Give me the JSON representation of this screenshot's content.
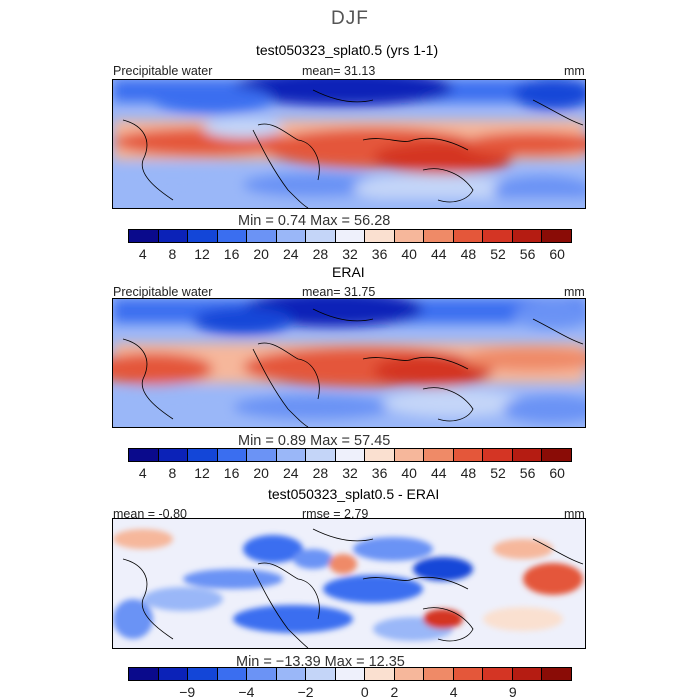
{
  "figure": {
    "suptitle": "DJF",
    "colors": {
      "warm_sequence": [
        "#0a0a8c",
        "#0b22b8",
        "#1346d8",
        "#3a6ef0",
        "#6b93f5",
        "#9ab7f8",
        "#c4d5f8",
        "#eef0fb",
        "#fae0d0",
        "#f6b79b",
        "#ef8a67",
        "#e4573a",
        "#d43524",
        "#b51c12",
        "#8a0c06"
      ]
    },
    "panels": [
      {
        "id": "model",
        "title": "test050323_splat0.5 (yrs 1-1)",
        "left_label": "Precipitable water",
        "center_label": "mean=  31.13",
        "right_label": "mm",
        "minmax": "Min =    0.74  Max =   56.28",
        "colorbar": {
          "colors": [
            "#0a0a8c",
            "#0b22b8",
            "#1346d8",
            "#3a6ef0",
            "#6b93f5",
            "#9ab7f8",
            "#c4d5f8",
            "#eef0fb",
            "#fae0d0",
            "#f6b79b",
            "#ef8a67",
            "#e4573a",
            "#d43524",
            "#b51c12",
            "#8a0c06"
          ],
          "ticks": [
            "4",
            "8",
            "12",
            "16",
            "20",
            "24",
            "28",
            "32",
            "36",
            "40",
            "44",
            "48",
            "52",
            "56",
            "60"
          ]
        }
      },
      {
        "id": "obs",
        "title": "ERAI",
        "left_label": "Precipitable water",
        "center_label": "mean=  31.75",
        "right_label": "mm",
        "minmax": "Min =    0.89  Max =   57.45",
        "colorbar": {
          "colors": [
            "#0a0a8c",
            "#0b22b8",
            "#1346d8",
            "#3a6ef0",
            "#6b93f5",
            "#9ab7f8",
            "#c4d5f8",
            "#eef0fb",
            "#fae0d0",
            "#f6b79b",
            "#ef8a67",
            "#e4573a",
            "#d43524",
            "#b51c12",
            "#8a0c06"
          ],
          "ticks": [
            "4",
            "8",
            "12",
            "16",
            "20",
            "24",
            "28",
            "32",
            "36",
            "40",
            "44",
            "48",
            "52",
            "56",
            "60"
          ]
        }
      },
      {
        "id": "diff",
        "title": "test050323_splat0.5 - ERAI",
        "left_label": "mean =   -0.80",
        "center_label": "rmse =    2.79",
        "right_label": "mm",
        "minmax": "Min = −13.39  Max =   12.35",
        "colorbar": {
          "colors": [
            "#0a0a8c",
            "#0b22b8",
            "#1346d8",
            "#3a6ef0",
            "#6b93f5",
            "#9ab7f8",
            "#c4d5f8",
            "#eef0fb",
            "#fae0d0",
            "#f6b79b",
            "#ef8a67",
            "#e4573a",
            "#d43524",
            "#b51c12",
            "#8a0c06"
          ],
          "ticks": [
            "−9",
            "−4",
            "−2",
            "0",
            "2",
            "4",
            "9"
          ]
        }
      }
    ]
  }
}
